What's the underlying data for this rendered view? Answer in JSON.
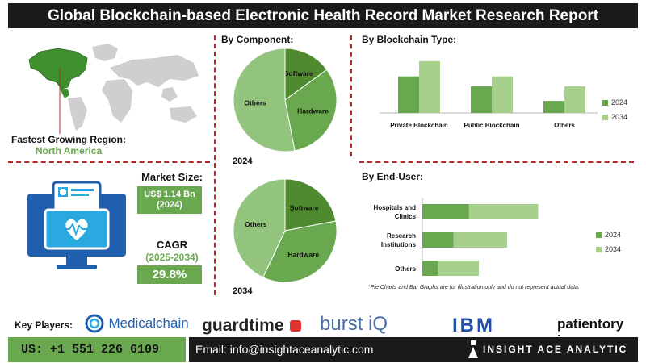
{
  "header": {
    "title": "Global Blockchain-based Electronic Health Record Market Research Report"
  },
  "region": {
    "label": "Fastest Growing Region:",
    "value": "North America"
  },
  "market": {
    "size_label": "Market Size:",
    "size_value": "US$ 1.14 Bn",
    "size_year": "(2024)",
    "cagr_label": "CAGR",
    "cagr_period": "(2025-2034)",
    "cagr_value": "29.8%"
  },
  "component": {
    "title": "By Component:",
    "year_2024": "2024",
    "year_2034": "2034"
  },
  "blockchain_type": {
    "title": "By Blockchain Type:"
  },
  "end_user": {
    "title": "By End-User:"
  },
  "disclaimer": "*Pie Charts and Bar Graphs are for illustration only and do not represent actual data.",
  "legend": {
    "y2024": "2024",
    "y2034": "2034"
  },
  "colors": {
    "dark_green": "#6aa84f",
    "light_green": "#93c47d",
    "pale_green": "#a8d08d",
    "header_bg": "#1a1a1a",
    "separator": "#b52a2a"
  },
  "footer": {
    "key_players_label": "Key Players:",
    "phone": "US: +1 551 226 6109",
    "email": "Email: info@insightaceanalytic.com",
    "brand": "INSIGHT ACE ANALYTIC"
  },
  "players": [
    "Medicalchain",
    "guardtime",
    "burst iQ",
    "IBM",
    "patientory inc"
  ],
  "icons": {
    "map": "world-map-icon",
    "ehr": "health-record-monitor-icon",
    "medicalchain": "medicalchain-logo-icon",
    "brand": "insightace-logo-icon"
  },
  "chart_data": [
    {
      "type": "pie",
      "id": "component_2024",
      "labels": [
        "Software",
        "Hardware",
        "Others"
      ],
      "values": [
        15,
        32,
        53
      ]
    },
    {
      "type": "pie",
      "id": "component_2034",
      "labels": [
        "Software",
        "Hardware",
        "Others"
      ],
      "values": [
        22,
        35,
        43
      ]
    },
    {
      "type": "bar",
      "id": "blockchain_type",
      "categories": [
        "Private Blockchain",
        "Public Blockchain",
        "Others"
      ],
      "series": [
        {
          "name": "2024",
          "values": [
            55,
            40,
            18
          ]
        },
        {
          "name": "2034",
          "values": [
            78,
            55,
            40
          ]
        }
      ],
      "ylim": [
        0,
        85
      ],
      "legend": "right"
    },
    {
      "type": "bar",
      "orientation": "horizontal",
      "id": "end_user",
      "categories": [
        "Hospitals and Clinics",
        "Research Institutions",
        "Others"
      ],
      "stacked": true,
      "series": [
        {
          "name": "2024",
          "values": [
            60,
            40,
            20
          ]
        },
        {
          "name": "2034",
          "values": [
            82,
            60,
            40
          ]
        }
      ],
      "legend": "right"
    }
  ]
}
